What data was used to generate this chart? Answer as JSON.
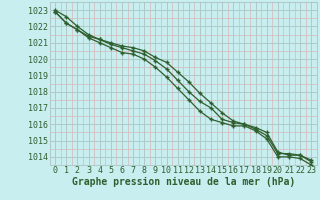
{
  "title": "Graphe pression niveau de la mer (hPa)",
  "x_hours": [
    0,
    1,
    2,
    3,
    4,
    5,
    6,
    7,
    8,
    9,
    10,
    11,
    12,
    13,
    14,
    15,
    16,
    17,
    18,
    19,
    20,
    21,
    22,
    23
  ],
  "line1": [
    1023.0,
    1022.6,
    1022.0,
    1021.5,
    1021.2,
    1021.0,
    1020.8,
    1020.7,
    1020.5,
    1020.1,
    1019.8,
    1019.2,
    1018.6,
    1017.9,
    1017.3,
    1016.7,
    1016.2,
    1016.0,
    1015.8,
    1015.5,
    1014.3,
    1014.1,
    1014.1,
    1013.8
  ],
  "line2": [
    1022.9,
    1022.2,
    1021.8,
    1021.4,
    1021.2,
    1020.9,
    1020.7,
    1020.5,
    1020.3,
    1019.9,
    1019.4,
    1018.7,
    1018.0,
    1017.4,
    1017.0,
    1016.3,
    1016.1,
    1016.0,
    1015.7,
    1015.3,
    1014.2,
    1014.2,
    1014.1,
    1013.7
  ],
  "line3": [
    1022.9,
    1022.2,
    1021.8,
    1021.3,
    1021.0,
    1020.7,
    1020.4,
    1020.3,
    1020.0,
    1019.5,
    1018.9,
    1018.2,
    1017.5,
    1016.8,
    1016.3,
    1016.1,
    1015.9,
    1015.9,
    1015.6,
    1015.1,
    1014.0,
    1014.0,
    1013.9,
    1013.5
  ],
  "bg_color": "#c8eef0",
  "line_color": "#2e5f2e",
  "grid_major_color": "#b0c8c8",
  "grid_minor_color": "#d8b8b8",
  "ylim": [
    1013.5,
    1023.5
  ],
  "yticks": [
    1014,
    1015,
    1016,
    1017,
    1018,
    1019,
    1020,
    1021,
    1022,
    1023
  ],
  "xlim": [
    -0.5,
    23.5
  ],
  "xticks": [
    0,
    1,
    2,
    3,
    4,
    5,
    6,
    7,
    8,
    9,
    10,
    11,
    12,
    13,
    14,
    15,
    16,
    17,
    18,
    19,
    20,
    21,
    22,
    23
  ],
  "title_fontsize": 7.0,
  "tick_fontsize": 6.0,
  "line_width": 0.9,
  "marker_size": 3.5
}
